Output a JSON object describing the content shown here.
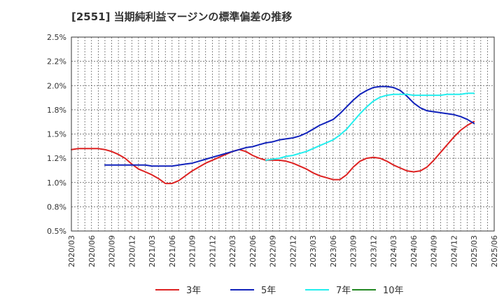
{
  "chart_data": {
    "type": "line",
    "title": "[2551]  当期純利益マージンの標準偏差の推移",
    "y_ticks": [
      "2.5%",
      "2.2%",
      "2.0%",
      "1.8%",
      "1.5%",
      "1.2%",
      "1.0%",
      "0.8%",
      "0.5%"
    ],
    "x_ticks": [
      "2020/03",
      "2020/06",
      "2020/09",
      "2020/12",
      "2021/03",
      "2021/06",
      "2021/09",
      "2021/12",
      "2022/03",
      "2022/06",
      "2022/09",
      "2022/12",
      "2023/03",
      "2023/06",
      "2023/09",
      "2023/12",
      "2024/03",
      "2024/06",
      "2024/09",
      "2024/12",
      "2025/03",
      "2025/06"
    ],
    "ylim": [
      0.5,
      2.5
    ],
    "grid": true,
    "legend_position": "bottom",
    "series": [
      {
        "name": "3年",
        "color": "#dd2222",
        "values": [
          [
            "2020/03",
            1.34
          ],
          [
            "2020/04",
            1.35
          ],
          [
            "2020/05",
            1.35
          ],
          [
            "2020/06",
            1.35
          ],
          [
            "2020/07",
            1.35
          ],
          [
            "2020/08",
            1.34
          ],
          [
            "2020/09",
            1.32
          ],
          [
            "2020/10",
            1.29
          ],
          [
            "2020/11",
            1.25
          ],
          [
            "2020/12",
            1.19
          ],
          [
            "2021/01",
            1.14
          ],
          [
            "2021/02",
            1.11
          ],
          [
            "2021/03",
            1.08
          ],
          [
            "2021/04",
            1.04
          ],
          [
            "2021/05",
            0.99
          ],
          [
            "2021/06",
            0.99
          ],
          [
            "2021/07",
            1.02
          ],
          [
            "2021/08",
            1.07
          ],
          [
            "2021/09",
            1.12
          ],
          [
            "2021/10",
            1.16
          ],
          [
            "2021/11",
            1.2
          ],
          [
            "2021/12",
            1.23
          ],
          [
            "2022/01",
            1.26
          ],
          [
            "2022/02",
            1.29
          ],
          [
            "2022/03",
            1.32
          ],
          [
            "2022/04",
            1.34
          ],
          [
            "2022/05",
            1.32
          ],
          [
            "2022/06",
            1.28
          ],
          [
            "2022/07",
            1.25
          ],
          [
            "2022/08",
            1.23
          ],
          [
            "2022/09",
            1.23
          ],
          [
            "2022/10",
            1.23
          ],
          [
            "2022/11",
            1.22
          ],
          [
            "2022/12",
            1.2
          ],
          [
            "2023/01",
            1.17
          ],
          [
            "2023/02",
            1.14
          ],
          [
            "2023/03",
            1.1
          ],
          [
            "2023/04",
            1.07
          ],
          [
            "2023/05",
            1.05
          ],
          [
            "2023/06",
            1.03
          ],
          [
            "2023/07",
            1.03
          ],
          [
            "2023/08",
            1.08
          ],
          [
            "2023/09",
            1.16
          ],
          [
            "2023/10",
            1.22
          ],
          [
            "2023/11",
            1.25
          ],
          [
            "2023/12",
            1.26
          ],
          [
            "2024/01",
            1.25
          ],
          [
            "2024/02",
            1.22
          ],
          [
            "2024/03",
            1.18
          ],
          [
            "2024/04",
            1.15
          ],
          [
            "2024/05",
            1.12
          ],
          [
            "2024/06",
            1.11
          ],
          [
            "2024/07",
            1.12
          ],
          [
            "2024/08",
            1.16
          ],
          [
            "2024/09",
            1.23
          ],
          [
            "2024/10",
            1.31
          ],
          [
            "2024/11",
            1.39
          ],
          [
            "2024/12",
            1.47
          ],
          [
            "2025/01",
            1.54
          ],
          [
            "2025/02",
            1.59
          ],
          [
            "2025/03",
            1.63
          ]
        ]
      },
      {
        "name": "5年",
        "color": "#1122bb",
        "values": [
          [
            "2020/08",
            1.18
          ],
          [
            "2020/09",
            1.18
          ],
          [
            "2020/10",
            1.18
          ],
          [
            "2020/11",
            1.18
          ],
          [
            "2020/12",
            1.18
          ],
          [
            "2021/01",
            1.18
          ],
          [
            "2021/02",
            1.18
          ],
          [
            "2021/03",
            1.17
          ],
          [
            "2021/04",
            1.17
          ],
          [
            "2021/05",
            1.17
          ],
          [
            "2021/06",
            1.17
          ],
          [
            "2021/07",
            1.18
          ],
          [
            "2021/08",
            1.19
          ],
          [
            "2021/09",
            1.2
          ],
          [
            "2021/10",
            1.22
          ],
          [
            "2021/11",
            1.24
          ],
          [
            "2021/12",
            1.26
          ],
          [
            "2022/01",
            1.28
          ],
          [
            "2022/02",
            1.3
          ],
          [
            "2022/03",
            1.32
          ],
          [
            "2022/04",
            1.34
          ],
          [
            "2022/05",
            1.36
          ],
          [
            "2022/06",
            1.37
          ],
          [
            "2022/07",
            1.39
          ],
          [
            "2022/08",
            1.41
          ],
          [
            "2022/09",
            1.42
          ],
          [
            "2022/10",
            1.44
          ],
          [
            "2022/11",
            1.45
          ],
          [
            "2022/12",
            1.46
          ],
          [
            "2023/01",
            1.48
          ],
          [
            "2023/02",
            1.51
          ],
          [
            "2023/03",
            1.55
          ],
          [
            "2023/04",
            1.59
          ],
          [
            "2023/05",
            1.62
          ],
          [
            "2023/06",
            1.65
          ],
          [
            "2023/07",
            1.71
          ],
          [
            "2023/08",
            1.78
          ],
          [
            "2023/09",
            1.85
          ],
          [
            "2023/10",
            1.91
          ],
          [
            "2023/11",
            1.95
          ],
          [
            "2023/12",
            1.98
          ],
          [
            "2024/01",
            1.99
          ],
          [
            "2024/02",
            1.99
          ],
          [
            "2024/03",
            1.98
          ],
          [
            "2024/04",
            1.95
          ],
          [
            "2024/05",
            1.89
          ],
          [
            "2024/06",
            1.82
          ],
          [
            "2024/07",
            1.77
          ],
          [
            "2024/08",
            1.74
          ],
          [
            "2024/09",
            1.73
          ],
          [
            "2024/10",
            1.72
          ],
          [
            "2024/11",
            1.71
          ],
          [
            "2024/12",
            1.7
          ],
          [
            "2025/01",
            1.68
          ],
          [
            "2025/02",
            1.65
          ],
          [
            "2025/03",
            1.61
          ]
        ]
      },
      {
        "name": "7年",
        "color": "#22eeee",
        "values": [
          [
            "2022/08",
            1.23
          ],
          [
            "2022/09",
            1.24
          ],
          [
            "2022/10",
            1.25
          ],
          [
            "2022/11",
            1.27
          ],
          [
            "2022/12",
            1.28
          ],
          [
            "2023/01",
            1.3
          ],
          [
            "2023/02",
            1.32
          ],
          [
            "2023/03",
            1.35
          ],
          [
            "2023/04",
            1.38
          ],
          [
            "2023/05",
            1.41
          ],
          [
            "2023/06",
            1.44
          ],
          [
            "2023/07",
            1.49
          ],
          [
            "2023/08",
            1.55
          ],
          [
            "2023/09",
            1.63
          ],
          [
            "2023/10",
            1.71
          ],
          [
            "2023/11",
            1.78
          ],
          [
            "2023/12",
            1.84
          ],
          [
            "2024/01",
            1.88
          ],
          [
            "2024/02",
            1.9
          ],
          [
            "2024/03",
            1.91
          ],
          [
            "2024/04",
            1.91
          ],
          [
            "2024/05",
            1.91
          ],
          [
            "2024/06",
            1.9
          ],
          [
            "2024/07",
            1.9
          ],
          [
            "2024/08",
            1.9
          ],
          [
            "2024/09",
            1.9
          ],
          [
            "2024/10",
            1.9
          ],
          [
            "2024/11",
            1.91
          ],
          [
            "2024/12",
            1.91
          ],
          [
            "2025/01",
            1.91
          ],
          [
            "2025/02",
            1.92
          ],
          [
            "2025/03",
            1.92
          ]
        ]
      },
      {
        "name": "10年",
        "color": "#228822",
        "values": []
      }
    ]
  }
}
